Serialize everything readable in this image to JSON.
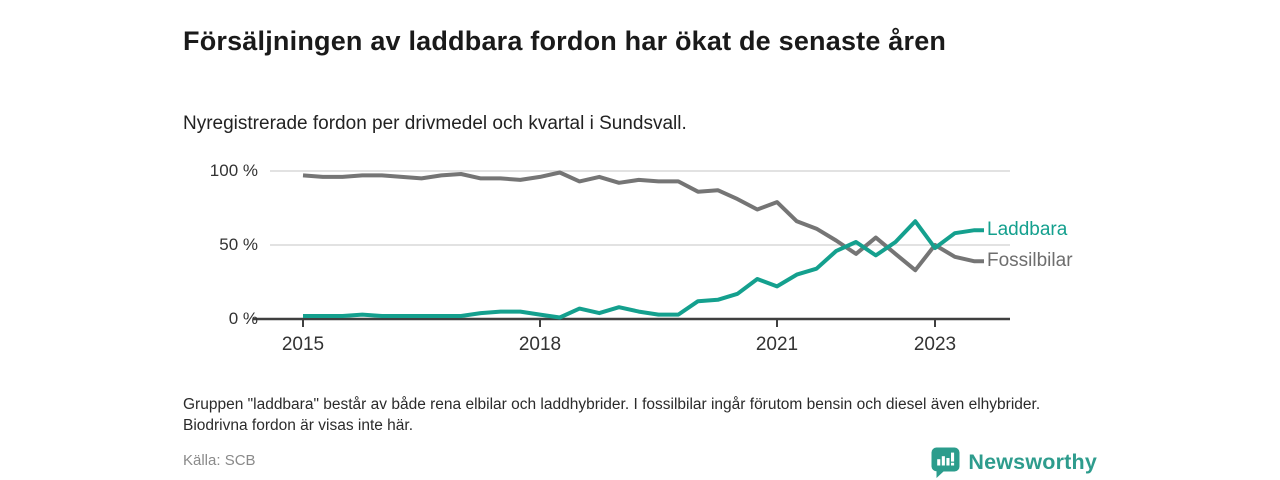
{
  "header": {
    "title": "Försäljningen av laddbara fordon har ökat de senaste åren",
    "subtitle": "Nyregistrerade fordon per drivmedel och kvartal i Sundsvall."
  },
  "chart_data": {
    "type": "line",
    "title": "Försäljningen av laddbara fordon har ökat de senaste åren",
    "subtitle": "Nyregistrerade fordon per drivmedel och kvartal i Sundsvall.",
    "x_unit": "kvartal",
    "categories": [
      "2015 K1",
      "2015 K2",
      "2015 K3",
      "2015 K4",
      "2016 K1",
      "2016 K2",
      "2016 K3",
      "2016 K4",
      "2017 K1",
      "2017 K2",
      "2017 K3",
      "2017 K4",
      "2018 K1",
      "2018 K2",
      "2018 K3",
      "2018 K4",
      "2019 K1",
      "2019 K2",
      "2019 K3",
      "2019 K4",
      "2020 K1",
      "2020 K2",
      "2020 K3",
      "2020 K4",
      "2021 K1",
      "2021 K2",
      "2021 K3",
      "2021 K4",
      "2022 K1",
      "2022 K2",
      "2022 K3",
      "2022 K4",
      "2023 K1",
      "2023 K2",
      "2023 K3"
    ],
    "series": [
      {
        "name": "Fossilbilar",
        "color": "#757575",
        "label_color": "#6e6e6e",
        "values": [
          97,
          96,
          96,
          97,
          97,
          96,
          95,
          97,
          98,
          95,
          95,
          94,
          96,
          99,
          93,
          96,
          92,
          94,
          93,
          93,
          86,
          87,
          81,
          74,
          79,
          66,
          61,
          53,
          44,
          55,
          44,
          33,
          50,
          42,
          39
        ]
      },
      {
        "name": "Laddbara",
        "color": "#14a08e",
        "label_color": "#14a08e",
        "values": [
          2,
          2,
          2,
          3,
          2,
          2,
          2,
          2,
          2,
          4,
          5,
          5,
          3,
          1,
          7,
          4,
          8,
          5,
          3,
          3,
          12,
          13,
          17,
          27,
          22,
          30,
          34,
          46,
          52,
          43,
          52,
          66,
          48,
          58,
          60
        ]
      }
    ],
    "ylim": [
      0,
      100
    ],
    "unit": "%",
    "yticks": [
      {
        "label": "0 %",
        "value": 0
      },
      {
        "label": "50 %",
        "value": 50
      },
      {
        "label": "100 %",
        "value": 100
      }
    ],
    "xticks": [
      {
        "label": "2015",
        "q": 0
      },
      {
        "label": "2018",
        "q": 12
      },
      {
        "label": "2021",
        "q": 24
      },
      {
        "label": "2023",
        "q": 32
      }
    ],
    "grid": true,
    "legend_position": "line-end-labels"
  },
  "footnote": "Gruppen \"laddbara\" består av både rena elbilar och laddhybrider. I fossilbilar ingår förutom bensin och diesel även elhybrider. Biodrivna fordon är visas inte här.",
  "footer": {
    "source": "Källa: SCB",
    "brand": "Newsworthy"
  },
  "colors": {
    "accent_teal": "#14a08e",
    "line_gray": "#757575",
    "gridline": "#d9d9d9",
    "axis": "#404040",
    "brand_teal": "#2e9c8d"
  }
}
